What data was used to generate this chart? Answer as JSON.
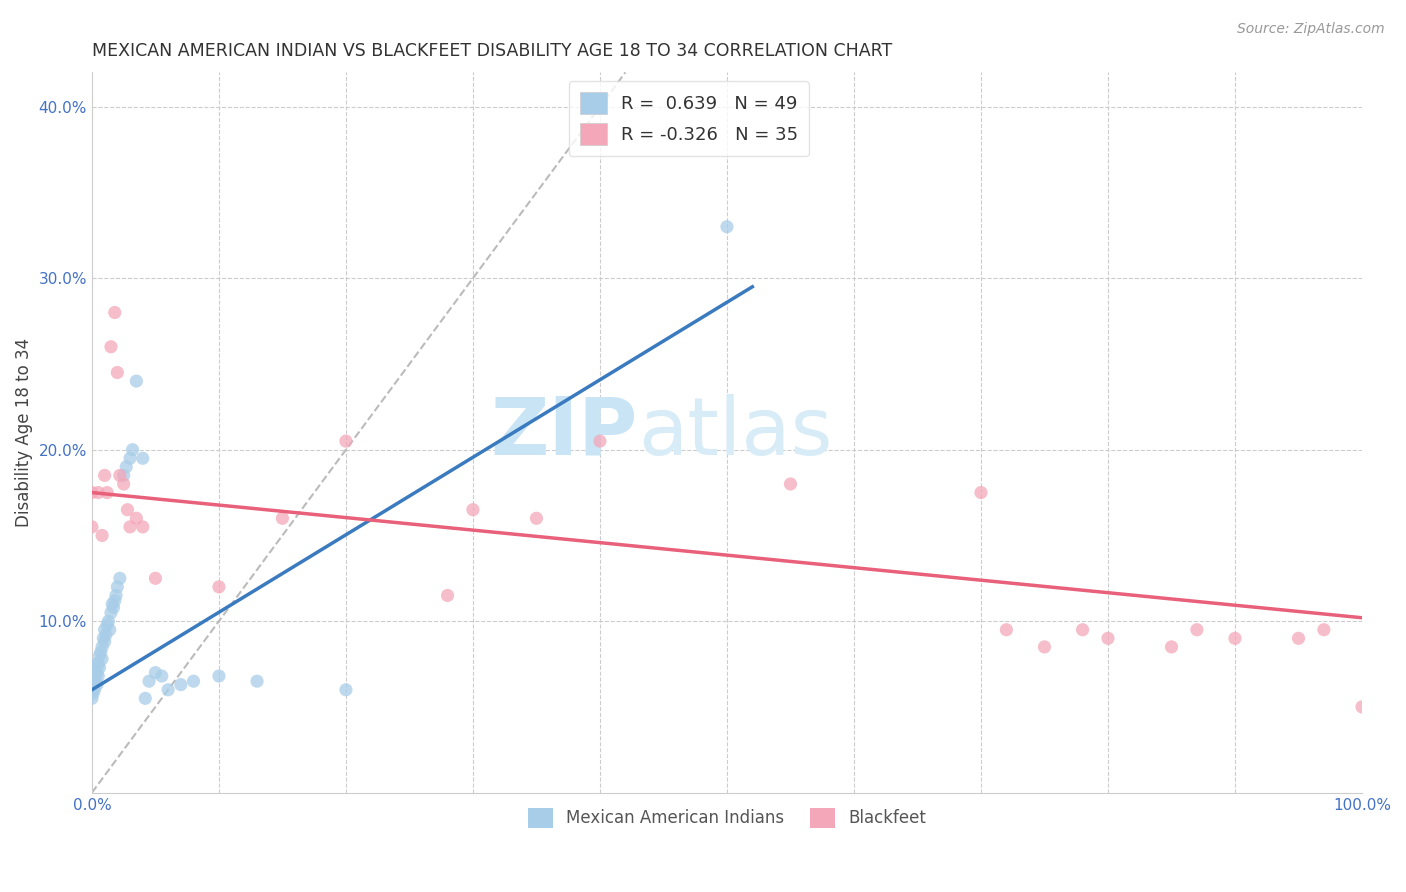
{
  "title": "MEXICAN AMERICAN INDIAN VS BLACKFEET DISABILITY AGE 18 TO 34 CORRELATION CHART",
  "source": "Source: ZipAtlas.com",
  "ylabel": "Disability Age 18 to 34",
  "xlim": [
    0.0,
    1.0
  ],
  "ylim": [
    0.0,
    0.42
  ],
  "x_ticks": [
    0.0,
    0.1,
    0.2,
    0.3,
    0.4,
    0.5,
    0.6,
    0.7,
    0.8,
    0.9,
    1.0
  ],
  "x_tick_labels": [
    "0.0%",
    "",
    "",
    "",
    "",
    "",
    "",
    "",
    "",
    "",
    "100.0%"
  ],
  "y_ticks": [
    0.0,
    0.1,
    0.2,
    0.3,
    0.4
  ],
  "y_tick_labels": [
    "",
    "10.0%",
    "20.0%",
    "30.0%",
    "40.0%"
  ],
  "blue_color": "#a8cde8",
  "pink_color": "#f4a7b9",
  "blue_line_color": "#3a7abf",
  "pink_line_color": "#e8607a",
  "ref_line_color": "#bbbbbb",
  "blue_scatter_x": [
    0.0,
    0.0,
    0.0,
    0.001,
    0.001,
    0.002,
    0.002,
    0.003,
    0.003,
    0.004,
    0.004,
    0.005,
    0.005,
    0.006,
    0.006,
    0.007,
    0.008,
    0.008,
    0.009,
    0.01,
    0.01,
    0.011,
    0.012,
    0.013,
    0.014,
    0.015,
    0.016,
    0.017,
    0.018,
    0.019,
    0.02,
    0.022,
    0.025,
    0.027,
    0.03,
    0.032,
    0.035,
    0.04,
    0.042,
    0.045,
    0.05,
    0.055,
    0.06,
    0.07,
    0.08,
    0.1,
    0.13,
    0.2,
    0.5
  ],
  "blue_scatter_y": [
    0.055,
    0.06,
    0.07,
    0.058,
    0.065,
    0.06,
    0.072,
    0.075,
    0.068,
    0.063,
    0.07,
    0.075,
    0.068,
    0.073,
    0.08,
    0.082,
    0.078,
    0.085,
    0.09,
    0.088,
    0.095,
    0.092,
    0.098,
    0.1,
    0.095,
    0.105,
    0.11,
    0.108,
    0.112,
    0.115,
    0.12,
    0.125,
    0.185,
    0.19,
    0.195,
    0.2,
    0.24,
    0.195,
    0.055,
    0.065,
    0.07,
    0.068,
    0.06,
    0.063,
    0.065,
    0.068,
    0.065,
    0.06,
    0.33
  ],
  "pink_scatter_x": [
    0.0,
    0.0,
    0.005,
    0.008,
    0.01,
    0.012,
    0.015,
    0.018,
    0.02,
    0.022,
    0.025,
    0.028,
    0.03,
    0.035,
    0.04,
    0.05,
    0.1,
    0.15,
    0.2,
    0.28,
    0.3,
    0.35,
    0.4,
    0.55,
    0.7,
    0.72,
    0.75,
    0.78,
    0.8,
    0.85,
    0.87,
    0.9,
    0.95,
    0.97,
    1.0
  ],
  "pink_scatter_y": [
    0.175,
    0.155,
    0.175,
    0.15,
    0.185,
    0.175,
    0.26,
    0.28,
    0.245,
    0.185,
    0.18,
    0.165,
    0.155,
    0.16,
    0.155,
    0.125,
    0.12,
    0.16,
    0.205,
    0.115,
    0.165,
    0.16,
    0.205,
    0.18,
    0.175,
    0.095,
    0.085,
    0.095,
    0.09,
    0.085,
    0.095,
    0.09,
    0.09,
    0.095,
    0.05
  ],
  "blue_trend_x0": 0.0,
  "blue_trend_x1": 0.52,
  "blue_trend_y0": 0.06,
  "blue_trend_y1": 0.295,
  "pink_trend_x0": 0.0,
  "pink_trend_x1": 1.0,
  "pink_trend_y0": 0.175,
  "pink_trend_y1": 0.102,
  "ref_line_x0": 0.0,
  "ref_line_x1": 0.42,
  "ref_line_y0": 0.0,
  "ref_line_y1": 0.42
}
